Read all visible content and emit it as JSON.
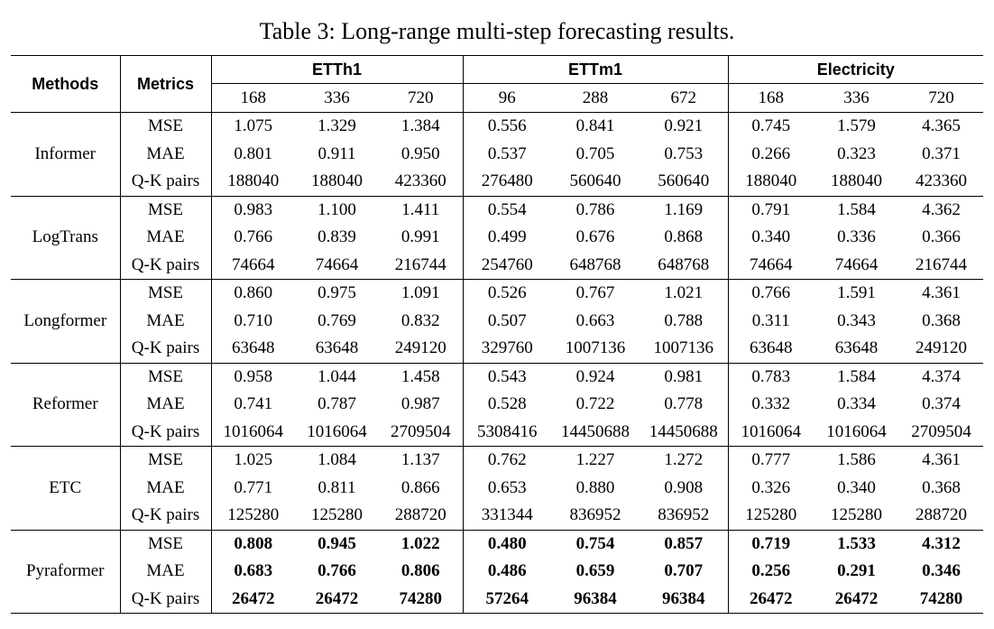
{
  "caption": "Table 3: Long-range multi-step forecasting results.",
  "header": {
    "methods": "Methods",
    "metrics": "Metrics",
    "datasets": [
      {
        "name": "ETTh1",
        "horizons": [
          "168",
          "336",
          "720"
        ]
      },
      {
        "name": "ETTm1",
        "horizons": [
          "96",
          "288",
          "672"
        ]
      },
      {
        "name": "Electricity",
        "horizons": [
          "168",
          "336",
          "720"
        ]
      }
    ]
  },
  "rows": [
    {
      "method": "Informer",
      "bold": false,
      "metrics": [
        {
          "name": "MSE",
          "values": [
            "1.075",
            "1.329",
            "1.384",
            "0.556",
            "0.841",
            "0.921",
            "0.745",
            "1.579",
            "4.365"
          ]
        },
        {
          "name": "MAE",
          "values": [
            "0.801",
            "0.911",
            "0.950",
            "0.537",
            "0.705",
            "0.753",
            "0.266",
            "0.323",
            "0.371"
          ]
        },
        {
          "name": "Q-K pairs",
          "values": [
            "188040",
            "188040",
            "423360",
            "276480",
            "560640",
            "560640",
            "188040",
            "188040",
            "423360"
          ]
        }
      ]
    },
    {
      "method": "LogTrans",
      "bold": false,
      "metrics": [
        {
          "name": "MSE",
          "values": [
            "0.983",
            "1.100",
            "1.411",
            "0.554",
            "0.786",
            "1.169",
            "0.791",
            "1.584",
            "4.362"
          ]
        },
        {
          "name": "MAE",
          "values": [
            "0.766",
            "0.839",
            "0.991",
            "0.499",
            "0.676",
            "0.868",
            "0.340",
            "0.336",
            "0.366"
          ]
        },
        {
          "name": "Q-K pairs",
          "values": [
            "74664",
            "74664",
            "216744",
            "254760",
            "648768",
            "648768",
            "74664",
            "74664",
            "216744"
          ]
        }
      ]
    },
    {
      "method": "Longformer",
      "bold": false,
      "metrics": [
        {
          "name": "MSE",
          "values": [
            "0.860",
            "0.975",
            "1.091",
            "0.526",
            "0.767",
            "1.021",
            "0.766",
            "1.591",
            "4.361"
          ]
        },
        {
          "name": "MAE",
          "values": [
            "0.710",
            "0.769",
            "0.832",
            "0.507",
            "0.663",
            "0.788",
            "0.311",
            "0.343",
            "0.368"
          ]
        },
        {
          "name": "Q-K pairs",
          "values": [
            "63648",
            "63648",
            "249120",
            "329760",
            "1007136",
            "1007136",
            "63648",
            "63648",
            "249120"
          ]
        }
      ]
    },
    {
      "method": "Reformer",
      "bold": false,
      "metrics": [
        {
          "name": "MSE",
          "values": [
            "0.958",
            "1.044",
            "1.458",
            "0.543",
            "0.924",
            "0.981",
            "0.783",
            "1.584",
            "4.374"
          ]
        },
        {
          "name": "MAE",
          "values": [
            "0.741",
            "0.787",
            "0.987",
            "0.528",
            "0.722",
            "0.778",
            "0.332",
            "0.334",
            "0.374"
          ]
        },
        {
          "name": "Q-K pairs",
          "values": [
            "1016064",
            "1016064",
            "2709504",
            "5308416",
            "14450688",
            "14450688",
            "1016064",
            "1016064",
            "2709504"
          ]
        }
      ]
    },
    {
      "method": "ETC",
      "bold": false,
      "metrics": [
        {
          "name": "MSE",
          "values": [
            "1.025",
            "1.084",
            "1.137",
            "0.762",
            "1.227",
            "1.272",
            "0.777",
            "1.586",
            "4.361"
          ]
        },
        {
          "name": "MAE",
          "values": [
            "0.771",
            "0.811",
            "0.866",
            "0.653",
            "0.880",
            "0.908",
            "0.326",
            "0.340",
            "0.368"
          ]
        },
        {
          "name": "Q-K pairs",
          "values": [
            "125280",
            "125280",
            "288720",
            "331344",
            "836952",
            "836952",
            "125280",
            "125280",
            "288720"
          ]
        }
      ]
    },
    {
      "method": "Pyraformer",
      "bold": true,
      "metrics": [
        {
          "name": "MSE",
          "values": [
            "0.808",
            "0.945",
            "1.022",
            "0.480",
            "0.754",
            "0.857",
            "0.719",
            "1.533",
            "4.312"
          ]
        },
        {
          "name": "MAE",
          "values": [
            "0.683",
            "0.766",
            "0.806",
            "0.486",
            "0.659",
            "0.707",
            "0.256",
            "0.291",
            "0.346"
          ]
        },
        {
          "name": "Q-K pairs",
          "values": [
            "26472",
            "26472",
            "74280",
            "57264",
            "96384",
            "96384",
            "26472",
            "26472",
            "74280"
          ]
        }
      ]
    }
  ]
}
